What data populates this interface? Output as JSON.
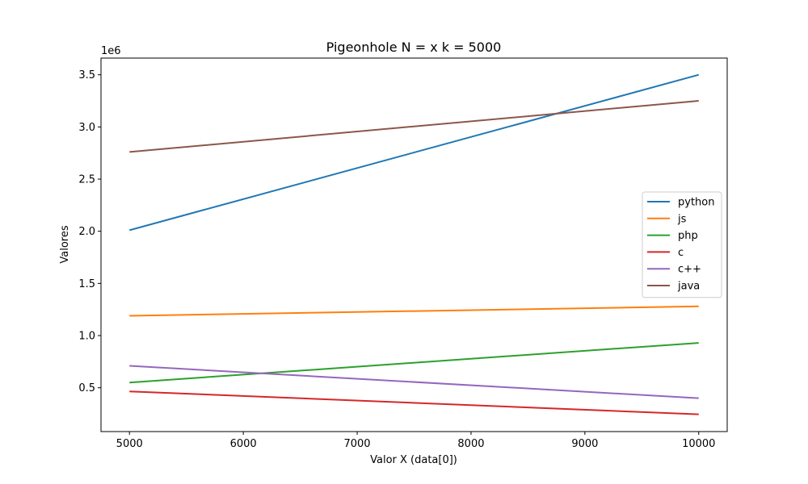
{
  "chart_data": {
    "type": "line",
    "title": "Pigeonhole N = x   k = 5000",
    "xlabel": "Valor X (data[0])",
    "ylabel": "Valores",
    "y_offset_label": "1e6",
    "xlim": [
      4750,
      10250
    ],
    "ylim": [
      0.08,
      3.66
    ],
    "x_ticks": [
      5000,
      6000,
      7000,
      8000,
      9000,
      10000
    ],
    "y_ticks": [
      0.5,
      1.0,
      1.5,
      2.0,
      2.5,
      3.0,
      3.5
    ],
    "x_tick_labels": [
      "5000",
      "6000",
      "7000",
      "8000",
      "9000",
      "10000"
    ],
    "y_tick_labels": [
      "0.5",
      "1.0",
      "1.5",
      "2.0",
      "2.5",
      "3.0",
      "3.5"
    ],
    "grid": false,
    "legend_position": "center-right",
    "x": [
      5000,
      10000
    ],
    "series": [
      {
        "name": "python",
        "color": "#1f77b4",
        "values": [
          2.01,
          3.5
        ]
      },
      {
        "name": "js",
        "color": "#ff7f0e",
        "values": [
          1.19,
          1.28
        ]
      },
      {
        "name": "php",
        "color": "#2ca02c",
        "values": [
          0.55,
          0.93
        ]
      },
      {
        "name": "c",
        "color": "#d62728",
        "values": [
          0.465,
          0.245
        ]
      },
      {
        "name": "c++",
        "color": "#9467bd",
        "values": [
          0.71,
          0.4
        ]
      },
      {
        "name": "java",
        "color": "#8c564b",
        "values": [
          2.76,
          3.25
        ]
      }
    ]
  }
}
